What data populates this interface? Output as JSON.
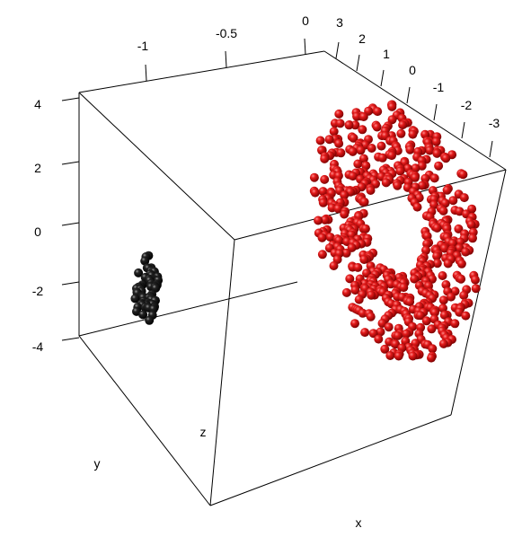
{
  "chart_data": {
    "type": "scatter",
    "projection": "3d",
    "title": "",
    "xlabel": "x",
    "ylabel": "y",
    "zlabel": "z",
    "x_ticks": [
      "-3",
      "-2",
      "-1",
      "0",
      "1",
      "2",
      "3"
    ],
    "y_ticks": [
      "-1",
      "-0.5",
      "0"
    ],
    "z_ticks": [
      "-4",
      "-2",
      "0",
      "2",
      "4"
    ],
    "xlim": [
      -3.5,
      3.5
    ],
    "ylim": [
      -1.4,
      0.1
    ],
    "zlim": [
      -4,
      4
    ],
    "grid": false,
    "series": [
      {
        "color": "#d40000",
        "shape": "ring",
        "center": [
          0,
          0
        ],
        "inner_radius": 1.2,
        "outer_radius": 3.4,
        "count": 560,
        "note_plane": "y = 0"
      },
      {
        "color": "#111111",
        "shape": "ring",
        "center": [
          0,
          -2
        ],
        "inner_radius": 0.15,
        "outer_radius": 0.45,
        "count": 70,
        "note_plane": "y = -1.4"
      }
    ]
  }
}
